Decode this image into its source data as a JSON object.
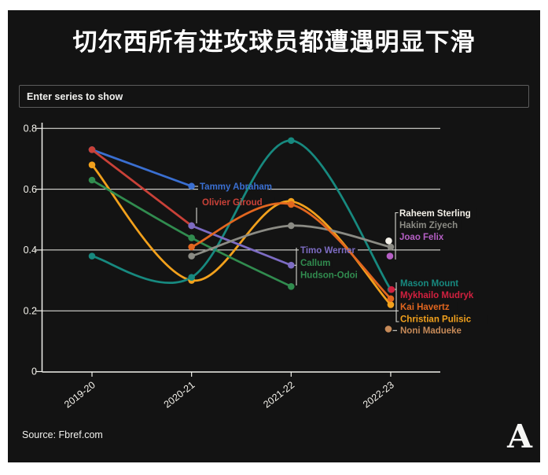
{
  "title": "切尔西所有进攻球员都遭遇明显下滑",
  "search": {
    "placeholder": "Enter series to show"
  },
  "source": "Source: Fbref.com",
  "logo_letter": "A",
  "colors": {
    "panel_bg": "#131313",
    "grid": "#f1f1ec",
    "axis_text": "#f3f1ea",
    "leader": "#d8d8d2"
  },
  "chart_data": {
    "type": "line",
    "title": "切尔西所有进攻球员都遭遇明显下滑",
    "x_categories": [
      "2019-20",
      "2020-21",
      "2021-22",
      "2022-23"
    ],
    "yticks": [
      "0",
      "0.2",
      "0.4",
      "0.6",
      "0.8"
    ],
    "ylim": [
      0,
      0.8
    ],
    "grid": true,
    "legend_position": "inline-labels",
    "series": [
      {
        "name": "Tammy Abraham",
        "color": "#3a6fd1",
        "values": [
          0.73,
          0.61,
          null,
          null
        ]
      },
      {
        "name": "Christian Pulisic",
        "color": "#f2a11c",
        "values": [
          0.68,
          0.3,
          0.56,
          0.22
        ]
      },
      {
        "name": "Callum Hudson-Odoi",
        "color": "#318c4f",
        "values": [
          0.63,
          0.44,
          0.28,
          null
        ]
      },
      {
        "name": "Mason Mount",
        "color": "#17897f",
        "values": [
          0.38,
          0.31,
          0.76,
          0.27
        ]
      },
      {
        "name": "Olivier Giroud",
        "color": "#c94138",
        "values": [
          0.73,
          0.48,
          null,
          null
        ]
      },
      {
        "name": "Timo Werner",
        "color": "#7d6cc3",
        "values": [
          null,
          0.48,
          0.35,
          null
        ]
      },
      {
        "name": "Hakim Ziyech",
        "color": "#8b8b84",
        "values": [
          null,
          0.38,
          0.48,
          0.41
        ]
      },
      {
        "name": "Kai Havertz",
        "color": "#e2661f",
        "values": [
          null,
          0.41,
          0.55,
          0.24
        ]
      },
      {
        "name": "Raheem Sterling",
        "color": "#f4f1e9",
        "values": [
          null,
          null,
          null,
          0.43
        ]
      },
      {
        "name": "Joao Felix",
        "color": "#b55fc4",
        "values": [
          null,
          null,
          null,
          0.38
        ]
      },
      {
        "name": "Mykhailo Mudryk",
        "color": "#d2203f",
        "values": [
          null,
          null,
          null,
          0.27
        ]
      },
      {
        "name": "Noni Madueke",
        "color": "#c68a58",
        "values": [
          null,
          null,
          null,
          0.14
        ]
      }
    ]
  }
}
